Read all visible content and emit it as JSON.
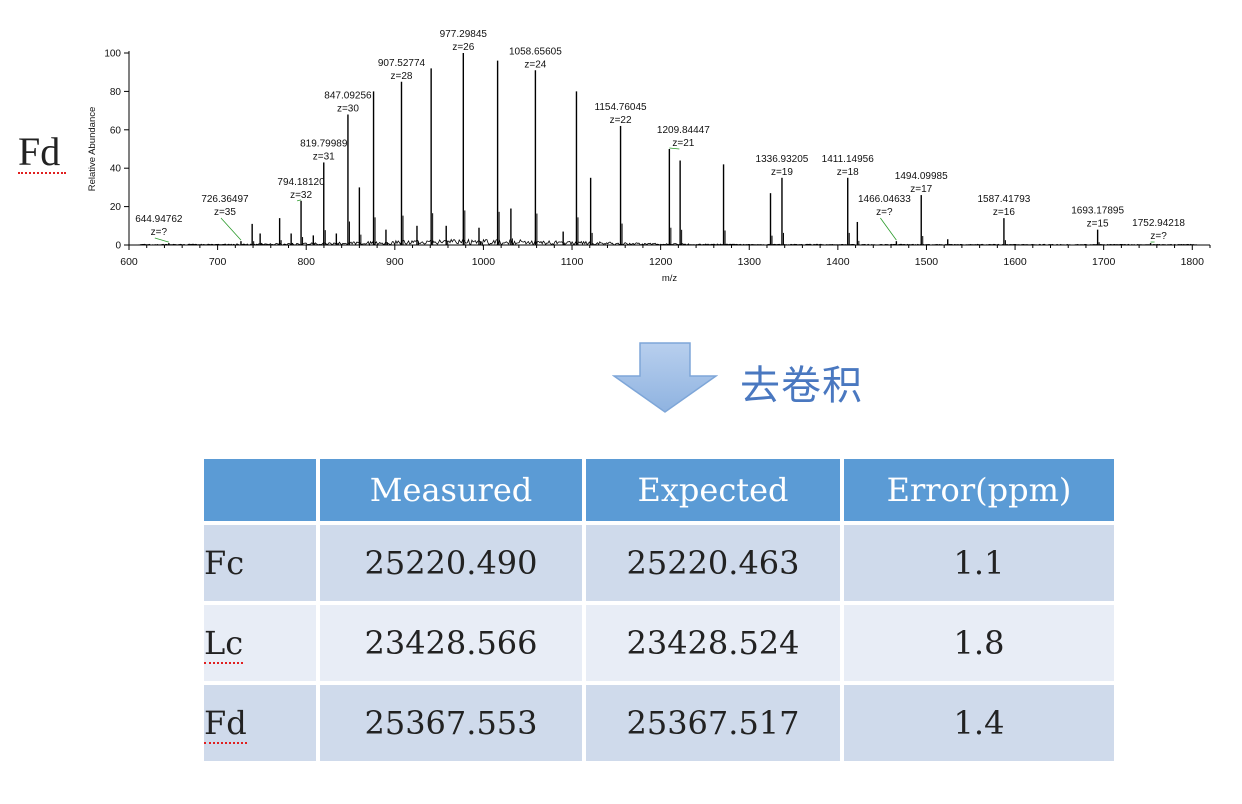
{
  "side_label": "Fd",
  "deconvolution_label": "去卷积",
  "chart_data": {
    "type": "line",
    "title": "",
    "xlabel": "m/z",
    "ylabel": "Relative Abundance",
    "xlim": [
      600,
      1820
    ],
    "ylim": [
      0,
      100
    ],
    "x_ticks": [
      600,
      700,
      800,
      900,
      1000,
      1100,
      1200,
      1300,
      1400,
      1500,
      1600,
      1700,
      1800
    ],
    "y_ticks": [
      0,
      20,
      40,
      60,
      80,
      100
    ],
    "peaks": [
      {
        "x": 644.95,
        "y": 1
      },
      {
        "x": 726.36,
        "y": 2
      },
      {
        "x": 739,
        "y": 11
      },
      {
        "x": 748,
        "y": 6
      },
      {
        "x": 770,
        "y": 14
      },
      {
        "x": 783,
        "y": 6
      },
      {
        "x": 794.18,
        "y": 23
      },
      {
        "x": 808,
        "y": 5
      },
      {
        "x": 819.8,
        "y": 43
      },
      {
        "x": 834,
        "y": 6
      },
      {
        "x": 847.09,
        "y": 68
      },
      {
        "x": 860,
        "y": 30
      },
      {
        "x": 876,
        "y": 80
      },
      {
        "x": 890,
        "y": 8
      },
      {
        "x": 907.53,
        "y": 85
      },
      {
        "x": 925,
        "y": 10
      },
      {
        "x": 941,
        "y": 92
      },
      {
        "x": 958,
        "y": 10
      },
      {
        "x": 977.3,
        "y": 100
      },
      {
        "x": 995,
        "y": 9
      },
      {
        "x": 1016,
        "y": 96
      },
      {
        "x": 1031,
        "y": 19
      },
      {
        "x": 1058.66,
        "y": 91
      },
      {
        "x": 1090,
        "y": 7
      },
      {
        "x": 1105,
        "y": 80
      },
      {
        "x": 1121,
        "y": 35
      },
      {
        "x": 1154.76,
        "y": 62
      },
      {
        "x": 1209.84,
        "y": 50
      },
      {
        "x": 1222,
        "y": 44
      },
      {
        "x": 1271,
        "y": 42
      },
      {
        "x": 1324,
        "y": 27
      },
      {
        "x": 1336.93,
        "y": 35
      },
      {
        "x": 1411.15,
        "y": 35
      },
      {
        "x": 1422,
        "y": 12
      },
      {
        "x": 1466.05,
        "y": 2
      },
      {
        "x": 1494.1,
        "y": 26
      },
      {
        "x": 1524,
        "y": 3
      },
      {
        "x": 1587.42,
        "y": 14
      },
      {
        "x": 1693.18,
        "y": 8
      },
      {
        "x": 1752.94,
        "y": 1
      }
    ],
    "annotations": [
      {
        "mz": "644.94762",
        "z": "z=?",
        "x": 644.95,
        "y": 1
      },
      {
        "mz": "726.36497",
        "z": "z=35",
        "x": 726.36,
        "y": 2
      },
      {
        "mz": "794.18120",
        "z": "z=32",
        "x": 794.18,
        "y": 23
      },
      {
        "mz": "819.79989",
        "z": "z=31",
        "x": 819.8,
        "y": 43
      },
      {
        "mz": "847.09256",
        "z": "z=30",
        "x": 847.09,
        "y": 68
      },
      {
        "mz": "907.52774",
        "z": "z=28",
        "x": 907.53,
        "y": 85
      },
      {
        "mz": "977.29845",
        "z": "z=26",
        "x": 977.3,
        "y": 100
      },
      {
        "mz": "1058.65605",
        "z": "z=24",
        "x": 1058.66,
        "y": 91
      },
      {
        "mz": "1154.76045",
        "z": "z=22",
        "x": 1154.76,
        "y": 62
      },
      {
        "mz": "1209.84447",
        "z": "z=21",
        "x": 1209.84,
        "y": 50
      },
      {
        "mz": "1336.93205",
        "z": "z=19",
        "x": 1336.93,
        "y": 35
      },
      {
        "mz": "1411.14956",
        "z": "z=18",
        "x": 1411.15,
        "y": 35
      },
      {
        "mz": "1466.04633",
        "z": "z=?",
        "x": 1466.05,
        "y": 2
      },
      {
        "mz": "1494.09985",
        "z": "z=17",
        "x": 1494.1,
        "y": 26
      },
      {
        "mz": "1587.41793",
        "z": "z=16",
        "x": 1587.42,
        "y": 14
      },
      {
        "mz": "1693.17895",
        "z": "z=15",
        "x": 1693.18,
        "y": 8
      },
      {
        "mz": "1752.94218",
        "z": "z=?",
        "x": 1752.94,
        "y": 1
      }
    ]
  },
  "table": {
    "headers": [
      "",
      "Measured",
      "Expected",
      "Error(ppm)"
    ],
    "rows": [
      {
        "name": "Fc",
        "measured": "25220.490",
        "expected": "25220.463",
        "error": "1.1"
      },
      {
        "name": "Lc",
        "measured": "23428.566",
        "expected": "23428.524",
        "error": "1.8"
      },
      {
        "name": "Fd",
        "measured": "25367.553",
        "expected": "25367.517",
        "error": "1.4"
      }
    ]
  },
  "colors": {
    "header_bg": "#5b9bd5",
    "row_dark": "#cfdaeb",
    "row_light": "#e8edf6",
    "arrow": "#8fb3e0",
    "decon_text": "#4a78c0"
  }
}
